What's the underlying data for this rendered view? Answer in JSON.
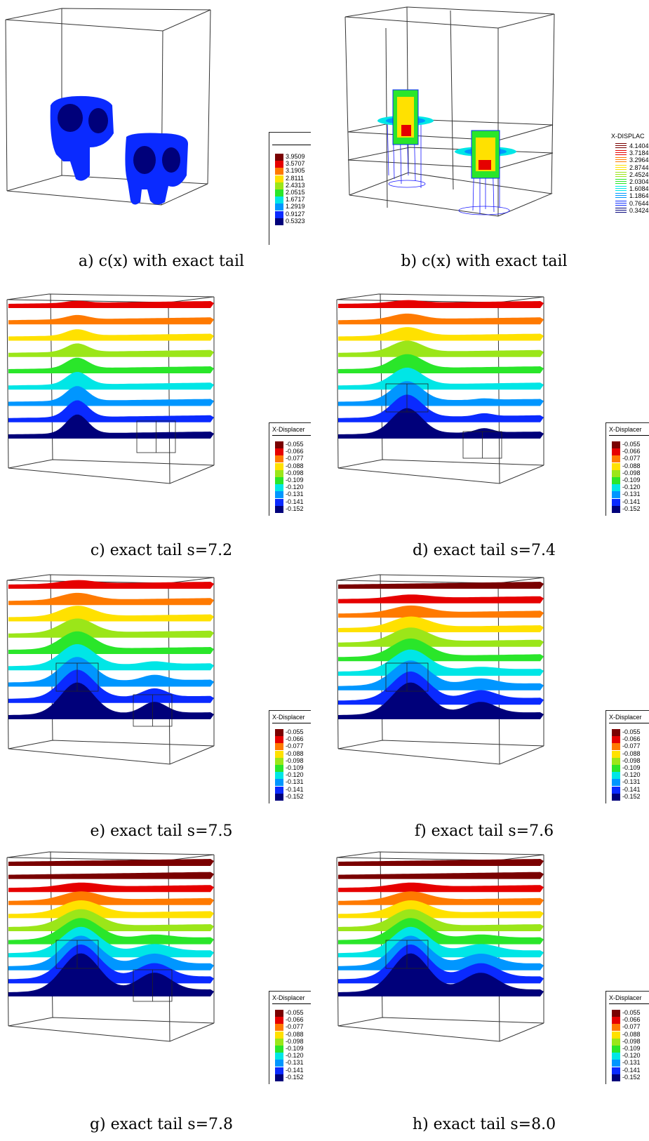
{
  "panels": [
    {
      "id": "a",
      "caption": "a) c(x) with exact tail",
      "legend": {
        "title": "",
        "values": [
          "3.9509",
          "3.5707",
          "3.1905",
          "2.8111",
          "2.4313",
          "2.0515",
          "1.6717",
          "1.2919",
          "0.9127",
          "0.5323"
        ]
      }
    },
    {
      "id": "b",
      "caption": "b) c(x) with exact tail",
      "legend": {
        "title": "X-DISPLAC",
        "values": [
          "4.1404",
          "3.7184",
          "3.2964",
          "2.8744",
          "2.4524",
          "2.0304",
          "1.6084",
          "1.1864",
          "0.7644",
          "0.3424"
        ]
      }
    },
    {
      "id": "c",
      "caption": "c) exact tail s=7.2",
      "legend": {
        "title": "X-Displacer",
        "values": [
          "-0.055",
          "-0.066",
          "-0.077",
          "-0.088",
          "-0.098",
          "-0.109",
          "-0.120",
          "-0.131",
          "-0.141",
          "-0.152"
        ]
      }
    },
    {
      "id": "d",
      "caption": "d) exact tail s=7.4",
      "legend": {
        "title": "X-Displacer",
        "values": [
          "-0.055",
          "-0.066",
          "-0.077",
          "-0.088",
          "-0.098",
          "-0.109",
          "-0.120",
          "-0.131",
          "-0.141",
          "-0.152"
        ]
      }
    },
    {
      "id": "e",
      "caption": "e) exact tail s=7.5",
      "legend": {
        "title": "X-Displacer",
        "values": [
          "-0.055",
          "-0.066",
          "-0.077",
          "-0.088",
          "-0.098",
          "-0.109",
          "-0.120",
          "-0.131",
          "-0.141",
          "-0.152"
        ]
      }
    },
    {
      "id": "f",
      "caption": "f) exact tail s=7.6",
      "legend": {
        "title": "X-Displacer",
        "values": [
          "-0.055",
          "-0.066",
          "-0.077",
          "-0.088",
          "-0.098",
          "-0.109",
          "-0.120",
          "-0.131",
          "-0.141",
          "-0.152"
        ]
      }
    },
    {
      "id": "g",
      "caption": "g) exact tail s=7.8",
      "legend": {
        "title": "X-Displacer",
        "values": [
          "-0.055",
          "-0.066",
          "-0.077",
          "-0.088",
          "-0.098",
          "-0.109",
          "-0.120",
          "-0.131",
          "-0.141",
          "-0.152"
        ]
      }
    },
    {
      "id": "h",
      "caption": "h) exact tail s=8.0",
      "legend": {
        "title": "X-Displacer",
        "values": [
          "-0.055",
          "-0.066",
          "-0.077",
          "-0.088",
          "-0.098",
          "-0.109",
          "-0.120",
          "-0.131",
          "-0.141",
          "-0.152"
        ]
      }
    }
  ],
  "colormap": [
    "#7a0000",
    "#e60000",
    "#ff7a00",
    "#ffe100",
    "#9be619",
    "#2ae62a",
    "#00e6e6",
    "#0096ff",
    "#0a2aff",
    "#00007a"
  ]
}
